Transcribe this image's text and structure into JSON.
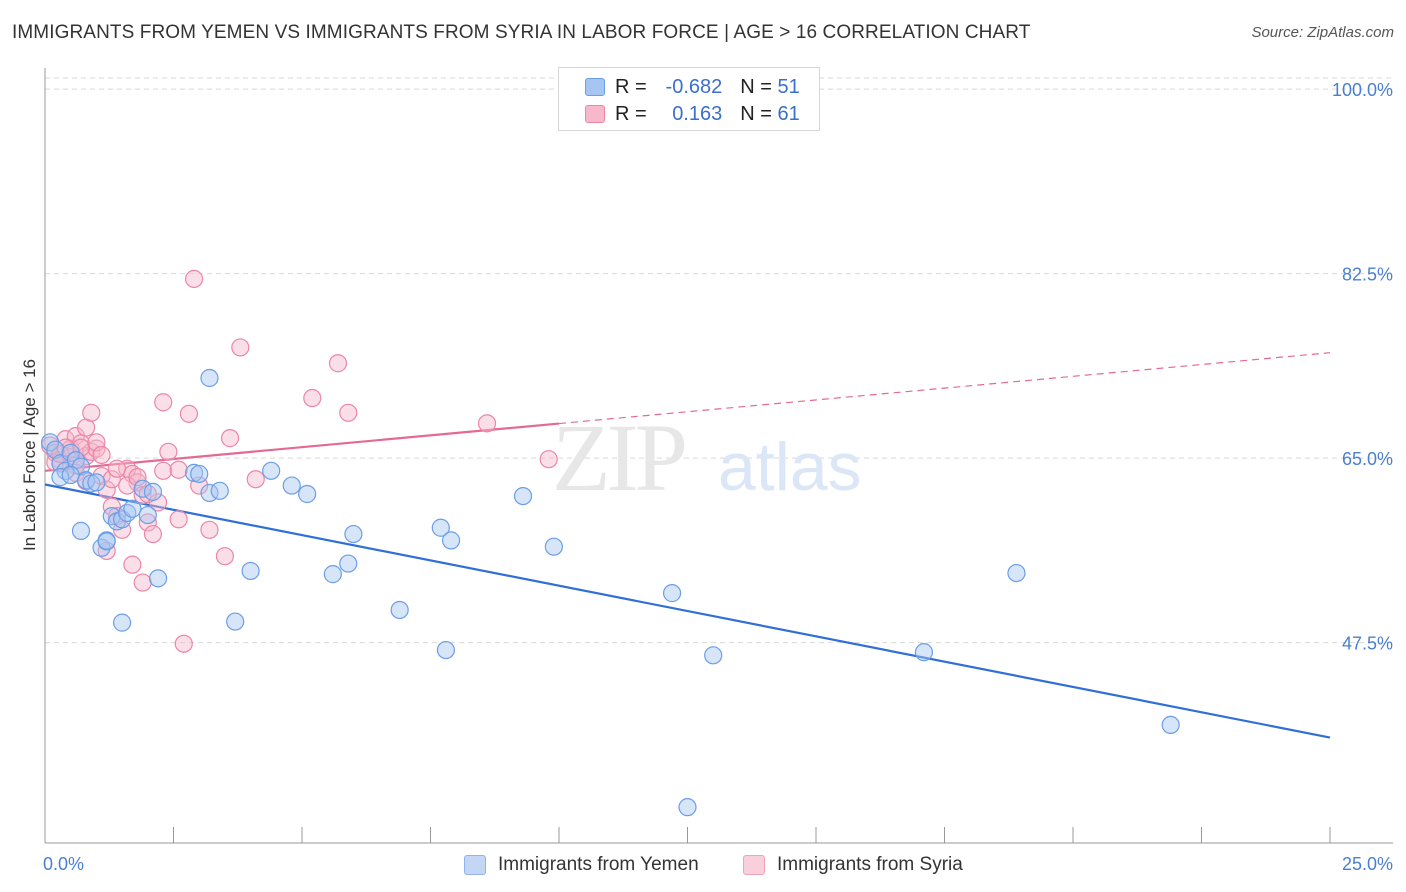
{
  "header": {
    "title": "IMMIGRANTS FROM YEMEN VS IMMIGRANTS FROM SYRIA IN LABOR FORCE | AGE > 16 CORRELATION CHART",
    "source": "Source: ZipAtlas.com"
  },
  "watermark": {
    "zip": "ZIP",
    "atlas": "atlas"
  },
  "legend": {
    "rows": [
      {
        "r_label": "R =",
        "r_value": "-0.682",
        "n_label": "N =",
        "n_value": "51",
        "color": "#a7c5f2",
        "stroke": "#6b9ee8"
      },
      {
        "r_label": "R =",
        "r_value": "0.163",
        "n_label": "N =",
        "n_value": "61",
        "color": "#f7b8cc",
        "stroke": "#ec86a6"
      }
    ]
  },
  "bottom_legend": {
    "yemen": "Immigrants from Yemen",
    "syria": "Immigrants from Syria"
  },
  "chart_data": {
    "type": "scatter",
    "title": "IMMIGRANTS FROM YEMEN VS IMMIGRANTS FROM SYRIA IN LABOR FORCE | AGE > 16 CORRELATION CHART",
    "xlabel": "",
    "ylabel": "In Labor Force | Age > 16",
    "xlim": [
      0,
      25
    ],
    "ylim": [
      28.5,
      102
    ],
    "x_tick_labels": [
      {
        "value": 0,
        "label": "0.0%"
      },
      {
        "value": 25,
        "label": "25.0%"
      }
    ],
    "y_tick_labels": [
      {
        "value": 100,
        "label": "100.0%"
      },
      {
        "value": 82.5,
        "label": "82.5%"
      },
      {
        "value": 65,
        "label": "65.0%"
      },
      {
        "value": 47.5,
        "label": "47.5%"
      }
    ],
    "y_grid": [
      100,
      82.5,
      65,
      47.5
    ],
    "x_minor_ticks": [
      0,
      2.5,
      5,
      7.5,
      10,
      12.5,
      15,
      17.5,
      20,
      22.5,
      25
    ],
    "series": [
      {
        "name": "Immigrants from Yemen",
        "color": "#a7c5f2",
        "stroke": "#6b9ee8",
        "line_color": "#2f6fd6",
        "trend": {
          "x": [
            0,
            25
          ],
          "y": [
            62.5,
            38.5
          ],
          "dashed_from": null
        },
        "points": [
          [
            0.1,
            66.5
          ],
          [
            0.2,
            65.8
          ],
          [
            0.3,
            64.5
          ],
          [
            0.4,
            63.8
          ],
          [
            0.5,
            65.5
          ],
          [
            0.6,
            64.8
          ],
          [
            0.7,
            64.2
          ],
          [
            0.8,
            62.9
          ],
          [
            0.9,
            62.6
          ],
          [
            1.0,
            62.7
          ],
          [
            0.7,
            58.1
          ],
          [
            1.1,
            56.5
          ],
          [
            1.2,
            57.2
          ],
          [
            1.3,
            59.5
          ],
          [
            1.4,
            59.0
          ],
          [
            1.5,
            59.2
          ],
          [
            1.6,
            59.8
          ],
          [
            1.7,
            60.2
          ],
          [
            1.9,
            62.1
          ],
          [
            2.2,
            53.6
          ],
          [
            1.5,
            49.4
          ],
          [
            2.9,
            63.6
          ],
          [
            3.0,
            63.5
          ],
          [
            3.2,
            61.7
          ],
          [
            3.4,
            61.9
          ],
          [
            3.2,
            72.6
          ],
          [
            3.7,
            49.5
          ],
          [
            4.0,
            54.3
          ],
          [
            4.4,
            63.8
          ],
          [
            4.8,
            62.4
          ],
          [
            5.1,
            61.6
          ],
          [
            5.6,
            54.0
          ],
          [
            5.9,
            55.0
          ],
          [
            6.0,
            57.8
          ],
          [
            6.9,
            50.6
          ],
          [
            7.7,
            58.4
          ],
          [
            7.8,
            46.8
          ],
          [
            7.9,
            57.2
          ],
          [
            9.3,
            61.4
          ],
          [
            9.9,
            56.6
          ],
          [
            12.2,
            52.2
          ],
          [
            12.5,
            31.9
          ],
          [
            13.0,
            46.3
          ],
          [
            17.1,
            46.6
          ],
          [
            18.9,
            54.1
          ],
          [
            21.9,
            39.7
          ],
          [
            0.3,
            63.2
          ],
          [
            0.5,
            63.4
          ],
          [
            1.2,
            57.1
          ],
          [
            2.1,
            61.8
          ],
          [
            2.0,
            59.6
          ]
        ]
      },
      {
        "name": "Immigrants from Syria",
        "color": "#f7b8cc",
        "stroke": "#ec86a6",
        "line_color": "#e46a93",
        "trend": {
          "x": [
            0,
            25
          ],
          "y": [
            63.8,
            75.0
          ],
          "dashed_from": 10
        },
        "points": [
          [
            0.1,
            66.2
          ],
          [
            0.2,
            65.5
          ],
          [
            0.3,
            64.8
          ],
          [
            0.4,
            66.8
          ],
          [
            0.5,
            65.9
          ],
          [
            0.6,
            67.1
          ],
          [
            0.7,
            66.4
          ],
          [
            0.8,
            65.2
          ],
          [
            0.9,
            65.6
          ],
          [
            1.0,
            65.9
          ],
          [
            0.5,
            65.1
          ],
          [
            0.6,
            64.3
          ],
          [
            0.7,
            66.0
          ],
          [
            0.8,
            67.9
          ],
          [
            0.9,
            69.3
          ],
          [
            1.0,
            66.5
          ],
          [
            1.1,
            63.3
          ],
          [
            1.2,
            62.0
          ],
          [
            1.3,
            60.4
          ],
          [
            1.4,
            59.5
          ],
          [
            1.5,
            58.2
          ],
          [
            1.6,
            64.0
          ],
          [
            1.7,
            63.5
          ],
          [
            1.8,
            62.7
          ],
          [
            1.9,
            61.5
          ],
          [
            2.0,
            58.9
          ],
          [
            2.1,
            57.8
          ],
          [
            2.2,
            60.8
          ],
          [
            2.3,
            63.8
          ],
          [
            2.4,
            65.6
          ],
          [
            2.6,
            59.2
          ],
          [
            2.7,
            47.4
          ],
          [
            2.8,
            69.2
          ],
          [
            2.9,
            82.0
          ],
          [
            3.0,
            62.4
          ],
          [
            3.2,
            58.2
          ],
          [
            3.5,
            55.7
          ],
          [
            3.6,
            66.9
          ],
          [
            3.8,
            75.5
          ],
          [
            4.1,
            63.0
          ],
          [
            5.2,
            70.7
          ],
          [
            5.7,
            74.0
          ],
          [
            5.9,
            69.3
          ],
          [
            8.6,
            68.3
          ],
          [
            9.8,
            64.9
          ],
          [
            0.2,
            64.6
          ],
          [
            0.3,
            65.4
          ],
          [
            0.4,
            66.0
          ],
          [
            0.6,
            63.6
          ],
          [
            0.8,
            62.8
          ],
          [
            1.1,
            65.3
          ],
          [
            1.3,
            63.0
          ],
          [
            1.4,
            64.0
          ],
          [
            1.6,
            62.4
          ],
          [
            1.8,
            63.2
          ],
          [
            2.0,
            61.6
          ],
          [
            2.3,
            70.3
          ],
          [
            2.6,
            63.9
          ],
          [
            1.2,
            56.2
          ],
          [
            1.7,
            54.9
          ],
          [
            1.9,
            53.2
          ]
        ]
      }
    ]
  }
}
